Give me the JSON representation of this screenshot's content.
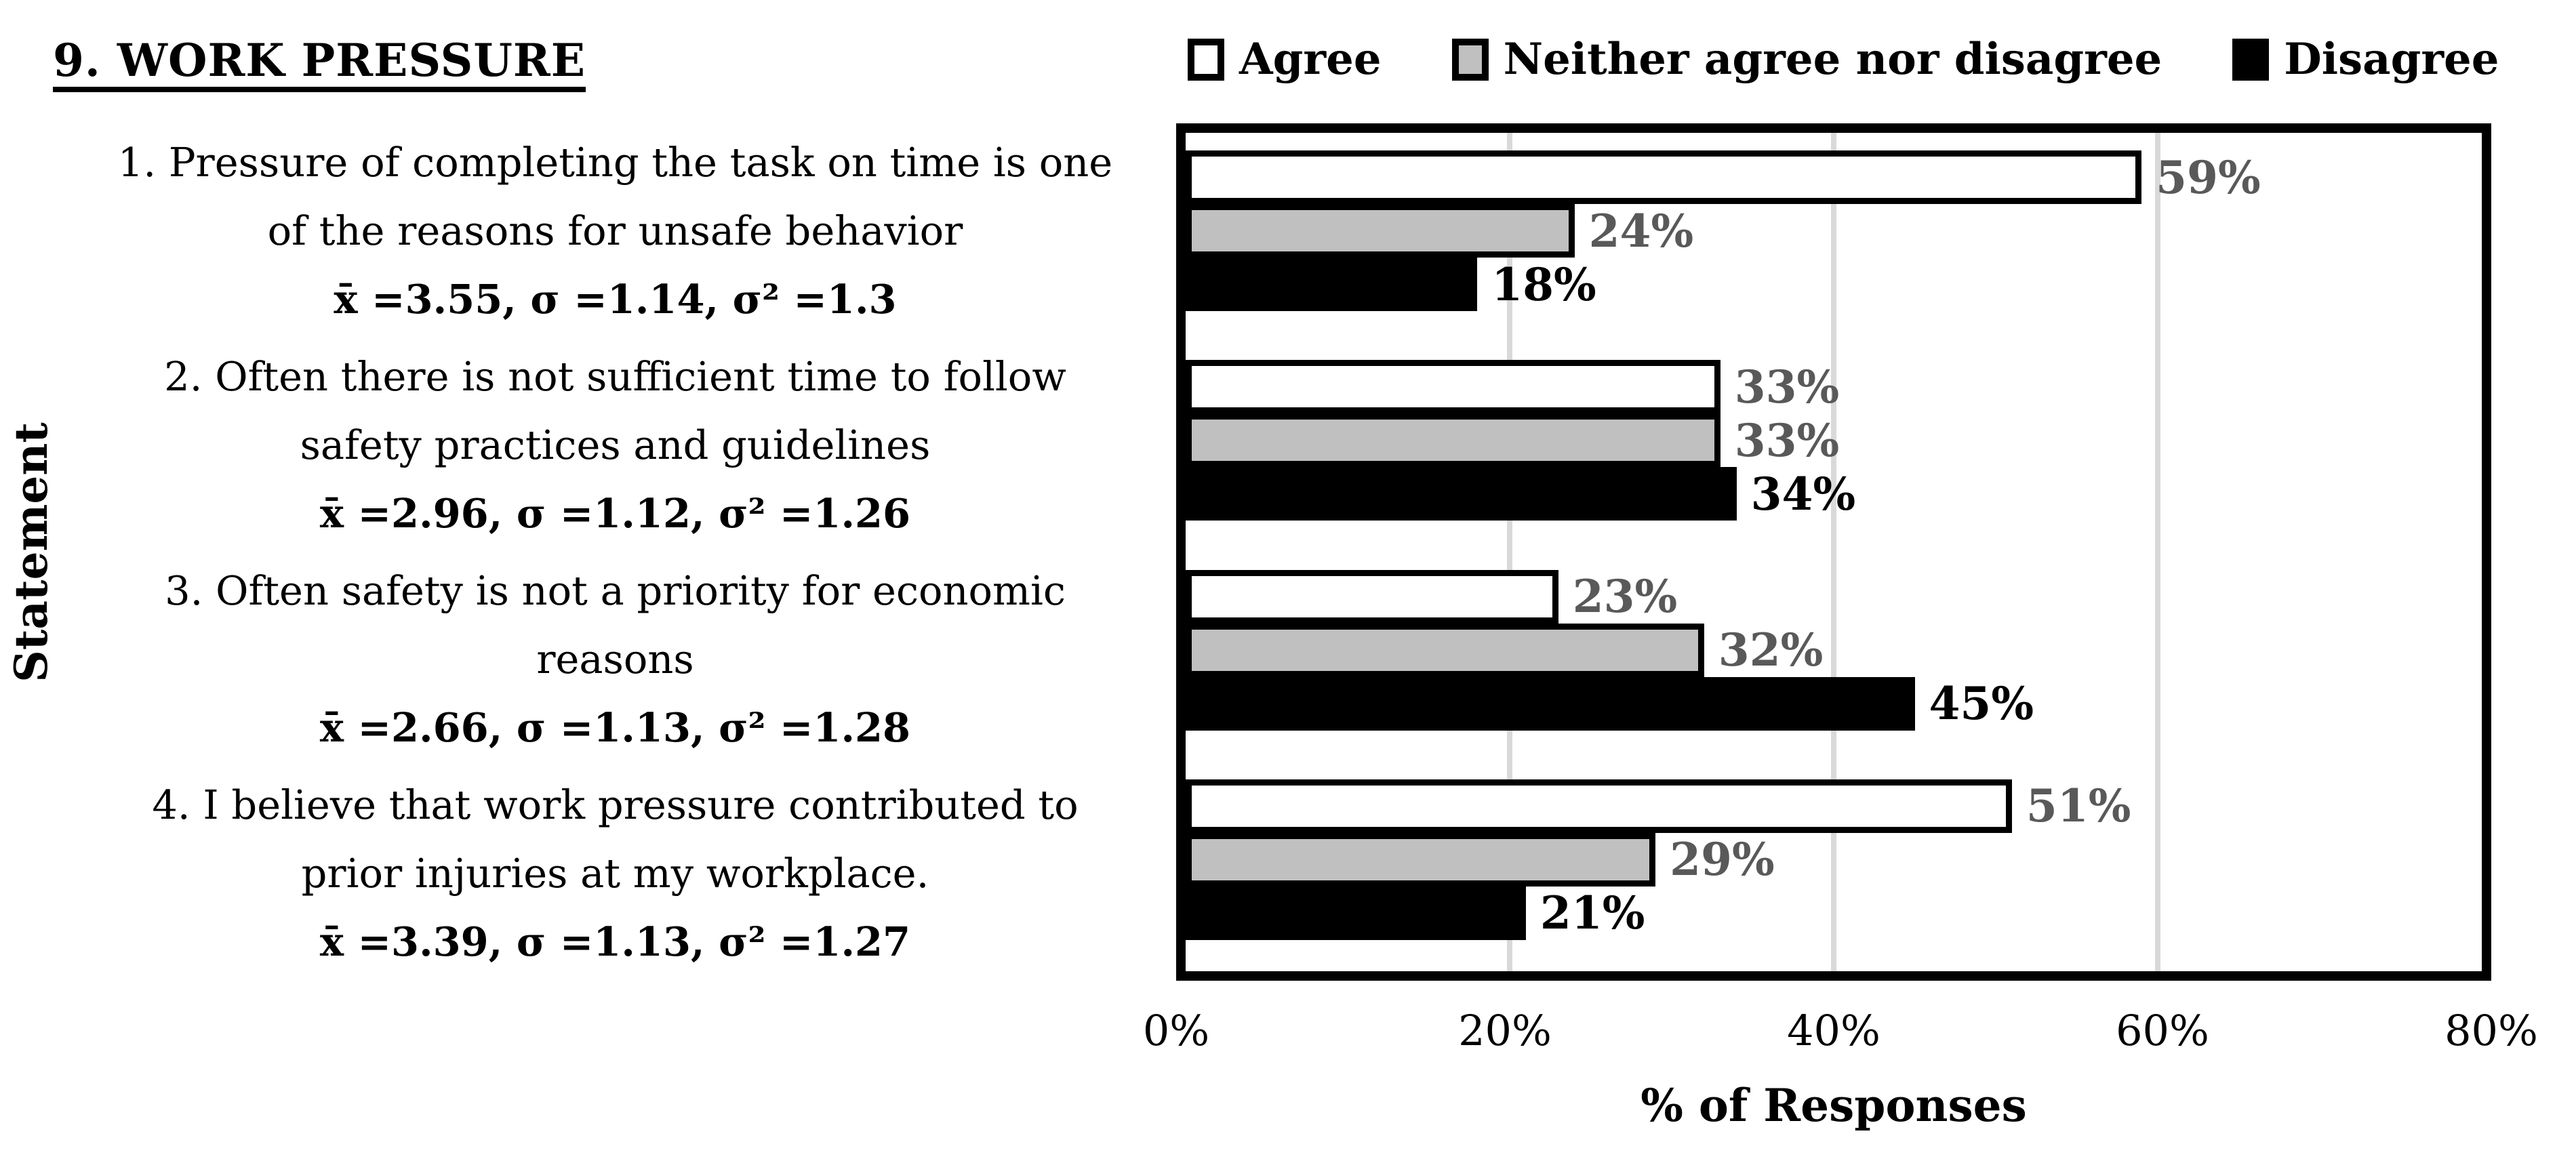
{
  "title": "9. WORK PRESSURE",
  "colors": {
    "plot_border": "#000000",
    "bar_border": "#000000",
    "gridline": "#D9D9D9",
    "agree_fill": "#FFFFFF",
    "neither_fill": "#C0C0C0",
    "disagree_fill": "#000000",
    "gray_label": "#595959",
    "black_label": "#000000"
  },
  "chart_data": {
    "type": "bar",
    "orientation": "horizontal",
    "title": "9. WORK PRESSURE",
    "xlabel": "% of Responses",
    "ylabel": "Statement",
    "xlim": [
      0,
      80
    ],
    "x_ticks": [
      "0%",
      "20%",
      "40%",
      "60%",
      "80%"
    ],
    "gridline_values": [
      20,
      40,
      60
    ],
    "legend_position": "top",
    "grid": "vertical-only",
    "categories": [
      {
        "lines": [
          "1. Pressure of completing the task on time is one",
          "of the reasons for unsafe behavior"
        ],
        "stats": "x̄ =3.55, σ =1.14, σ² =1.3"
      },
      {
        "lines": [
          "2. Often there is not sufficient time to follow",
          "safety practices and guidelines"
        ],
        "stats": "x̄ =2.96, σ =1.12, σ² =1.26"
      },
      {
        "lines": [
          "3. Often safety is not a priority for economic",
          "reasons"
        ],
        "stats": "x̄ =2.66, σ =1.13, σ² =1.28"
      },
      {
        "lines": [
          "4. I believe that work pressure contributed to",
          "prior injuries at my workplace."
        ],
        "stats": "x̄ =3.39, σ =1.13, σ² =1.27"
      }
    ],
    "series": [
      {
        "name": "Agree",
        "fill": "#FFFFFF",
        "label_color": "#595959",
        "values": [
          59,
          33,
          23,
          51
        ]
      },
      {
        "name": "Neither agree nor disagree",
        "fill": "#C0C0C0",
        "label_color": "#595959",
        "values": [
          24,
          33,
          32,
          29
        ]
      },
      {
        "name": "Disagree",
        "fill": "#000000",
        "label_color": "#000000",
        "values": [
          18,
          34,
          45,
          21
        ]
      }
    ],
    "data_label_format": "{value}%"
  }
}
